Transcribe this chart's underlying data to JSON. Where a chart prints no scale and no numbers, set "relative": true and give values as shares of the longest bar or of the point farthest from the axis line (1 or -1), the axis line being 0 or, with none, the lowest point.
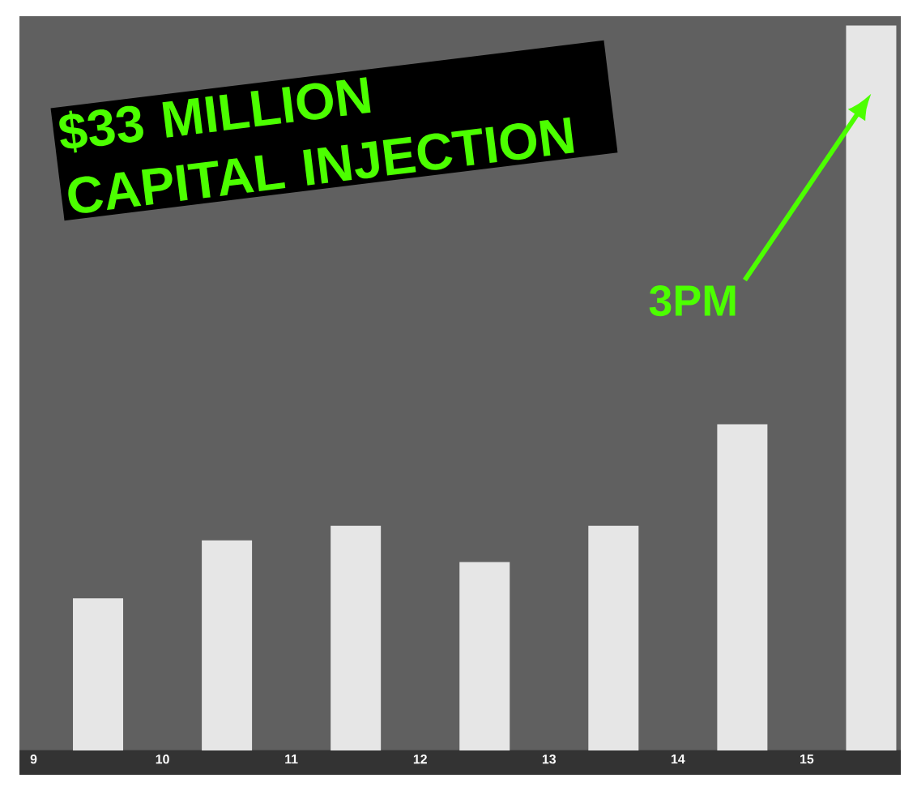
{
  "chart_data": {
    "type": "bar",
    "relative": true,
    "x": [
      9.5,
      10.5,
      11.5,
      12.5,
      13.5,
      14.5,
      15.5
    ],
    "values": [
      0.21,
      0.29,
      0.31,
      0.26,
      0.31,
      0.45,
      1
    ],
    "color": "#e6e6e6",
    "xlim": [
      8.89,
      15.73
    ],
    "xticks": [
      9,
      10,
      11,
      12,
      13,
      14,
      15
    ],
    "annotations": [
      "$33 MILLION CAPITAL INJECTION",
      "3PM"
    ]
  }
}
